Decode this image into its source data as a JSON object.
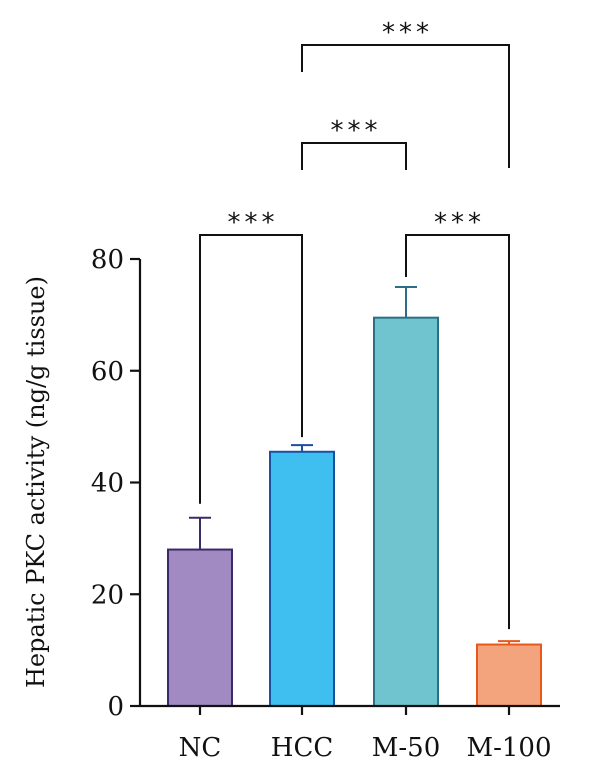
{
  "chart_data": {
    "type": "bar",
    "title": "",
    "xlabel": "",
    "ylabel": "Hepatic PKC activity (ng/g tissue)",
    "ylim": [
      0,
      80
    ],
    "yticks": [
      0,
      20,
      40,
      60,
      80
    ],
    "categories": [
      "NC",
      "HCC",
      "M-50",
      "M-100"
    ],
    "values": [
      28,
      45.5,
      69.5,
      11
    ],
    "errors": [
      5.7,
      1.2,
      5.5,
      0.6
    ],
    "colors": [
      "#a189c1",
      "#3fbfef",
      "#6fc4cf",
      "#f4a47c"
    ],
    "edge_colors": [
      "#3b2a6a",
      "#1b4fa0",
      "#2a6f86",
      "#e8581a"
    ],
    "significance": [
      {
        "from": "NC",
        "to": "HCC",
        "label": "***"
      },
      {
        "from": "M-50",
        "to": "M-100",
        "label": "***"
      },
      {
        "from": "HCC",
        "to": "M-50",
        "label": "***"
      },
      {
        "from": "HCC",
        "to": "M-100",
        "label": "***"
      }
    ]
  }
}
